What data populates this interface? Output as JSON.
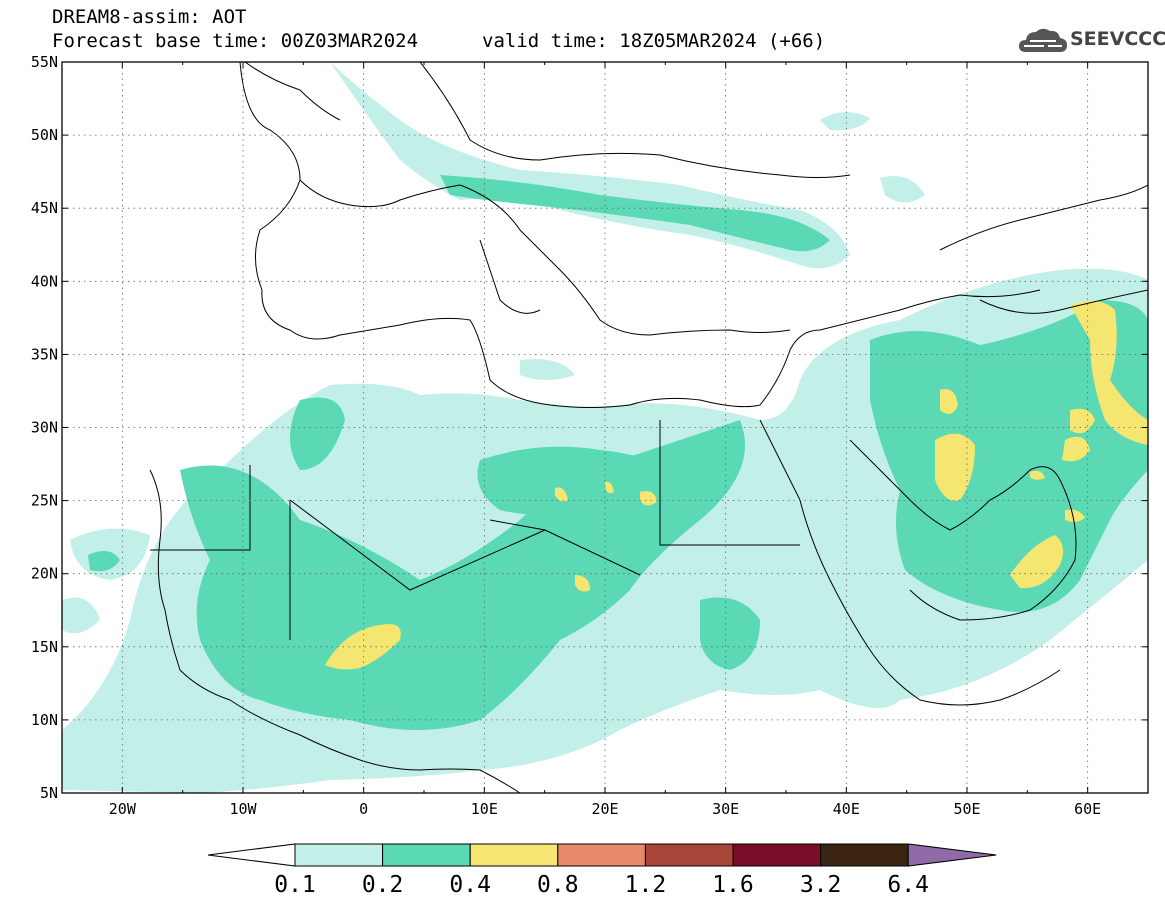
{
  "header": {
    "title": "DREAM8-assim: AOT",
    "base_time": "Forecast base time: 00Z03MAR2024",
    "valid_time": "valid time: 18Z05MAR2024 (+66)"
  },
  "logo": {
    "text": "SEEVCCC",
    "icon": "cloud-icon",
    "color": "#555555"
  },
  "map": {
    "lat_labels": [
      "55N",
      "50N",
      "45N",
      "40N",
      "35N",
      "30N",
      "25N",
      "20N",
      "15N",
      "10N",
      "5N"
    ],
    "lon_labels": [
      "20W",
      "10W",
      "0",
      "10E",
      "20E",
      "30E",
      "40E",
      "50E",
      "60E"
    ],
    "lat_range": [
      5,
      55
    ],
    "lon_range": [
      -25,
      65
    ],
    "grid": "dotted"
  },
  "colorbar": {
    "labels": [
      "0.1",
      "0.2",
      "0.4",
      "0.8",
      "1.2",
      "1.6",
      "3.2",
      "6.4"
    ],
    "colors": [
      "#c2f0e8",
      "#5ad9b4",
      "#f5e571",
      "#e8896a",
      "#a8463a",
      "#7a0e28",
      "#3b2412",
      "#8e6aa6"
    ]
  }
}
